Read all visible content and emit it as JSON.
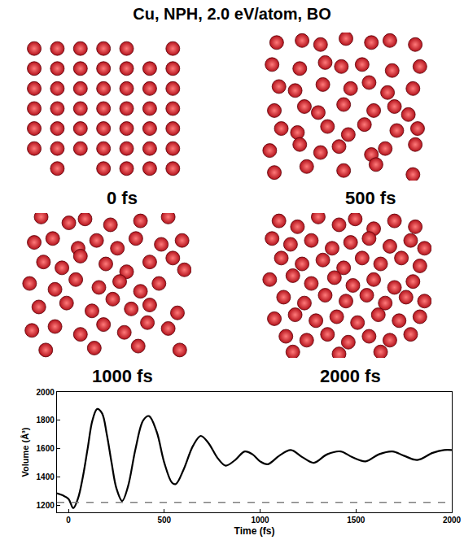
{
  "title": "Cu, NPH, 2.0 eV/atom, BO",
  "chart_data": [
    {
      "type": "scatter",
      "title": "0 fs",
      "tick_labels": false,
      "color": "#b3121b",
      "marker": "circle",
      "xlim": [
        -0.6,
        6.8
      ],
      "ylim": [
        -0.6,
        6.8
      ],
      "x": [
        0,
        1,
        2,
        3,
        4,
        6,
        0,
        1,
        2,
        3,
        4,
        5,
        6,
        0,
        1,
        2,
        3,
        4,
        5,
        6,
        0,
        1,
        2,
        3,
        4,
        5,
        6,
        0,
        1,
        2,
        3,
        4,
        5,
        6,
        0,
        1,
        2,
        3,
        4,
        5,
        6,
        1,
        3,
        4,
        5,
        6
      ],
      "y": [
        6,
        6,
        6,
        6,
        6,
        6,
        5,
        5,
        5,
        5,
        5,
        5,
        5,
        4,
        4,
        4,
        4,
        4,
        4,
        4,
        3,
        3,
        3,
        3,
        3,
        3,
        3,
        2,
        2,
        2,
        2,
        2,
        2,
        2,
        1,
        1,
        1,
        1,
        1,
        1,
        1,
        0,
        0,
        0,
        0,
        0
      ]
    },
    {
      "type": "scatter",
      "title": "500 fs",
      "tick_labels": false,
      "color": "#b3121b",
      "marker": "circle",
      "xlim": [
        -0.6,
        6.8
      ],
      "ylim": [
        -0.6,
        6.8
      ],
      "x": [
        0.1,
        1.2,
        2.0,
        3.1,
        4.2,
        5.0,
        6.1,
        -0.1,
        1.1,
        2.2,
        2.9,
        3.8,
        5.1,
        6.3,
        0.2,
        0.9,
        2.1,
        3.3,
        4.1,
        4.9,
        6.0,
        0.0,
        1.3,
        1.9,
        3.0,
        4.3,
        5.2,
        5.8,
        0.3,
        1.0,
        2.3,
        3.2,
        3.9,
        5.3,
        6.2,
        -0.2,
        1.1,
        2.0,
        2.8,
        4.2,
        4.8,
        6.1,
        0.0,
        1.4,
        3.0,
        4.4,
        6.0
      ],
      "y": [
        6.3,
        6.4,
        6.2,
        6.5,
        6.3,
        6.4,
        6.2,
        5.2,
        5.0,
        5.3,
        5.1,
        5.2,
        4.9,
        5.1,
        4.1,
        3.9,
        4.2,
        4.0,
        4.3,
        3.8,
        4.0,
        2.9,
        3.1,
        2.8,
        3.2,
        2.9,
        3.1,
        2.7,
        2.0,
        1.8,
        2.1,
        1.7,
        2.2,
        1.9,
        2.0,
        0.9,
        1.2,
        0.8,
        1.1,
        0.7,
        1.0,
        1.2,
        -0.2,
        0.1,
        -0.1,
        0.2,
        -0.3
      ]
    },
    {
      "type": "scatter",
      "title": "1000 fs",
      "tick_labels": false,
      "color": "#b3121b",
      "marker": "circle",
      "xlim": [
        -0.6,
        6.8
      ],
      "ylim": [
        -0.6,
        6.8
      ],
      "x": [
        0.3,
        1.5,
        2.2,
        3.3,
        4.6,
        5.8,
        0.0,
        0.8,
        1.9,
        2.7,
        3.6,
        4.4,
        5.5,
        6.4,
        0.4,
        1.2,
        2.0,
        3.1,
        4.0,
        5.0,
        6.0,
        6.5,
        -0.2,
        0.9,
        1.8,
        2.8,
        3.7,
        4.6,
        5.4,
        0.2,
        1.4,
        2.5,
        3.4,
        4.2,
        5.0,
        6.2,
        -0.1,
        0.9,
        2.0,
        3.0,
        3.9,
        4.9,
        5.8,
        0.5,
        2.6,
        4.5,
        6.3
      ],
      "y": [
        6.6,
        6.3,
        6.5,
        6.2,
        6.4,
        6.6,
        5.3,
        5.5,
        5.0,
        5.4,
        5.0,
        5.5,
        5.2,
        5.4,
        4.3,
        4.0,
        4.6,
        4.2,
        3.8,
        4.3,
        4.5,
        3.9,
        3.2,
        2.9,
        3.4,
        3.0,
        3.3,
        2.8,
        3.2,
        2.0,
        2.2,
        1.8,
        2.4,
        1.9,
        2.1,
        1.7,
        0.8,
        1.0,
        0.6,
        1.1,
        0.7,
        1.2,
        0.9,
        -0.2,
        -0.1,
        0.0,
        -0.2
      ]
    },
    {
      "type": "scatter",
      "title": "2000 fs",
      "tick_labels": false,
      "color": "#b3121b",
      "marker": "circle",
      "xlim": [
        -0.6,
        6.8
      ],
      "ylim": [
        -0.6,
        6.8
      ],
      "x": [
        0.2,
        1.0,
        1.9,
        2.8,
        3.5,
        4.3,
        5.2,
        6.1,
        -0.1,
        0.7,
        1.6,
        2.5,
        3.3,
        4.1,
        5.0,
        5.9,
        6.5,
        0.3,
        1.2,
        2.1,
        3.0,
        3.8,
        4.6,
        5.5,
        6.3,
        -0.2,
        0.8,
        1.6,
        2.6,
        3.4,
        4.3,
        5.2,
        6.0,
        0.4,
        1.3,
        2.2,
        3.1,
        4.0,
        4.8,
        5.7,
        6.5,
        0.0,
        0.9,
        1.8,
        2.7,
        3.6,
        4.5,
        5.4,
        6.3,
        0.5,
        1.4,
        2.3,
        3.2,
        4.1,
        5.0,
        5.9,
        0.8,
        2.8,
        4.6
      ],
      "y": [
        6.4,
        6.1,
        6.6,
        6.2,
        6.5,
        6.0,
        6.4,
        6.1,
        5.5,
        5.2,
        5.4,
        5.0,
        5.3,
        5.5,
        5.1,
        5.4,
        5.0,
        4.5,
        4.2,
        4.4,
        4.0,
        4.5,
        4.2,
        4.5,
        4.1,
        3.4,
        3.6,
        3.2,
        3.5,
        3.1,
        3.4,
        3.0,
        3.3,
        2.5,
        2.2,
        2.6,
        2.3,
        2.6,
        2.2,
        2.5,
        2.3,
        1.4,
        1.6,
        1.3,
        1.5,
        1.2,
        1.6,
        1.3,
        1.5,
        0.5,
        0.3,
        0.6,
        0.2,
        0.5,
        0.3,
        0.6,
        -0.3,
        -0.4,
        -0.3
      ]
    },
    {
      "type": "line",
      "x_label": "Time (fs)",
      "y_label": "Volume (Å³)",
      "xlim": [
        -60,
        2000
      ],
      "ylim": [
        1150,
        2000
      ],
      "xticks": [
        0,
        500,
        1000,
        1500,
        2000
      ],
      "yticks": [
        1200,
        1400,
        1600,
        1800,
        2000
      ],
      "series": [
        {
          "color": "#000000",
          "line_style": "solid",
          "x": [
            -60,
            -30,
            0,
            25,
            50,
            75,
            100,
            125,
            150,
            175,
            200,
            225,
            250,
            280,
            310,
            350,
            390,
            420,
            460,
            500,
            540,
            560,
            600,
            650,
            690,
            730,
            780,
            820,
            870,
            920,
            960,
            1000,
            1040,
            1100,
            1160,
            1220,
            1280,
            1350,
            1420,
            1480,
            1550,
            1620,
            1690,
            1750,
            1820,
            1900,
            1960,
            2000
          ],
          "values": [
            1285,
            1270,
            1245,
            1180,
            1250,
            1400,
            1600,
            1800,
            1880,
            1850,
            1700,
            1500,
            1320,
            1230,
            1330,
            1600,
            1800,
            1830,
            1720,
            1500,
            1360,
            1350,
            1450,
            1620,
            1690,
            1640,
            1530,
            1480,
            1520,
            1580,
            1560,
            1510,
            1490,
            1550,
            1590,
            1540,
            1500,
            1560,
            1580,
            1540,
            1510,
            1560,
            1580,
            1550,
            1520,
            1570,
            1590,
            1590
          ]
        },
        {
          "color": "#808080",
          "line_style": "dashed",
          "x": [
            -60,
            2000
          ],
          "values": [
            1220,
            1220
          ]
        }
      ]
    }
  ]
}
